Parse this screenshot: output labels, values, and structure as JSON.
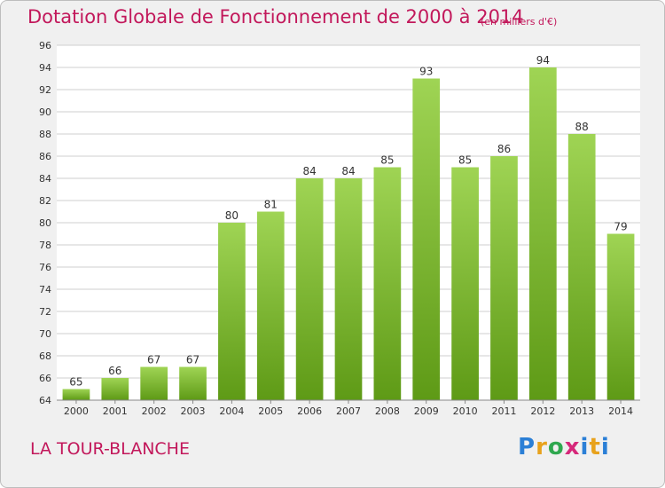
{
  "header": {
    "title": "Dotation Globale de Fonctionnement de 2000 à 2014",
    "unit": "(en milliers d'€)"
  },
  "footer": {
    "commune": "LA TOUR-BLANCHE",
    "logo": "Proxiti",
    "logo_letters": [
      "P",
      "r",
      "o",
      "x",
      "i",
      "t",
      "i"
    ]
  },
  "colors": {
    "bar_top": "#9fd454",
    "bar_bottom": "#5e9a16",
    "text_accent": "#c2185b"
  },
  "chart_data": {
    "type": "bar",
    "title": "Dotation Globale de Fonctionnement de 2000 à 2014",
    "subtitle": "(en milliers d'€)",
    "xlabel": "",
    "ylabel": "",
    "categories": [
      "2000",
      "2001",
      "2002",
      "2003",
      "2004",
      "2005",
      "2006",
      "2007",
      "2008",
      "2009",
      "2010",
      "2011",
      "2012",
      "2013",
      "2014"
    ],
    "values": [
      65,
      66,
      67,
      67,
      80,
      81,
      84,
      84,
      85,
      93,
      85,
      86,
      94,
      88,
      79
    ],
    "ylim": [
      64,
      96
    ],
    "yticks": [
      64,
      66,
      68,
      70,
      72,
      74,
      76,
      78,
      80,
      82,
      84,
      86,
      88,
      90,
      92,
      94,
      96
    ],
    "grid": true,
    "legend": "none"
  }
}
